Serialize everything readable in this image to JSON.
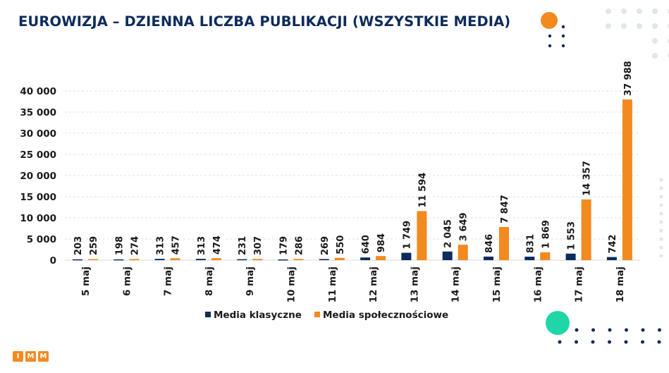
{
  "chart_data": {
    "type": "bar",
    "title": "EUROWIZJA – DZIENNA LICZBA PUBLIKACJI (WSZYSTKIE MEDIA)",
    "categories": [
      "5 maj",
      "6 maj",
      "7 maj",
      "8 maj",
      "9 maj",
      "10 maj",
      "11 maj",
      "12 maj",
      "13 maj",
      "14 maj",
      "15 maj",
      "16 maj",
      "17 maj",
      "18 maj"
    ],
    "series": [
      {
        "name": "Media klasyczne",
        "color": "#0d2b5c",
        "values": [
          203,
          198,
          313,
          313,
          231,
          179,
          269,
          640,
          1749,
          2045,
          846,
          831,
          1553,
          742
        ]
      },
      {
        "name": "Media społecznościowe",
        "color": "#f28a1f",
        "values": [
          259,
          274,
          457,
          474,
          307,
          286,
          550,
          984,
          11594,
          3649,
          7847,
          1869,
          14357,
          37988
        ]
      }
    ],
    "ylim": [
      0,
      40000
    ],
    "yticks": [
      0,
      5000,
      10000,
      15000,
      20000,
      25000,
      30000,
      35000,
      40000
    ],
    "ytick_labels": [
      "0",
      "5 000",
      "10 000",
      "15 000",
      "20 000",
      "25 000",
      "30 000",
      "35 000",
      "40 000"
    ],
    "value_labels": [
      [
        "203",
        "198",
        "313",
        "313",
        "231",
        "179",
        "269",
        "640",
        "1 749",
        "2 045",
        "846",
        "831",
        "1 553",
        "742"
      ],
      [
        "259",
        "274",
        "457",
        "474",
        "307",
        "286",
        "550",
        "984",
        "11 594",
        "3 649",
        "7 847",
        "1 869",
        "14 357",
        "37 988"
      ]
    ],
    "grid": true,
    "legend_position": "bottom",
    "xlabel": "",
    "ylabel": ""
  },
  "logo": [
    "I",
    "M",
    "M"
  ],
  "colors": {
    "accent_orange": "#f28a1f",
    "navy": "#0d2b5c",
    "teal": "#1fd6a8"
  }
}
